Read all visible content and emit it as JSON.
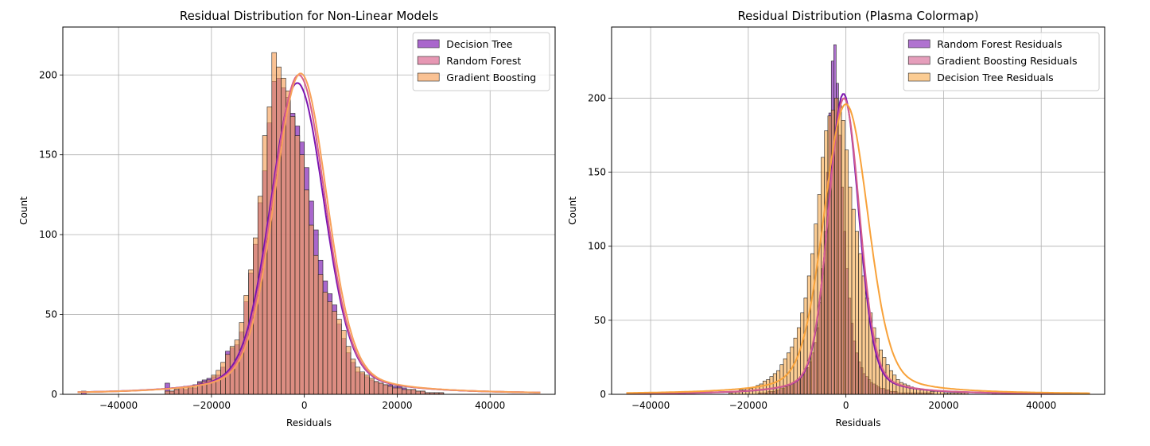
{
  "chart_data": [
    {
      "type": "histogram",
      "title": "Residual Distribution for Non-Linear Models",
      "xlabel": "Residuals",
      "ylabel": "Count",
      "xlim": [
        -52000,
        54000
      ],
      "ylim": [
        0,
        230
      ],
      "xticks": [
        -40000,
        -20000,
        0,
        20000,
        40000
      ],
      "xtick_labels": [
        "−40000",
        "−20000",
        "0",
        "20000",
        "40000"
      ],
      "yticks": [
        0,
        50,
        100,
        150,
        200
      ],
      "ytick_labels": [
        "0",
        "50",
        "100",
        "150",
        "200"
      ],
      "grid": true,
      "legend_position": "top-right",
      "bin_edges_start": -30000,
      "bin_width": 1000,
      "series": [
        {
          "name": "Decision Tree",
          "color": "#7b15b0",
          "bar_alpha": 0.65,
          "kde_peak": 195,
          "kde_center": -1500,
          "kde_sigma": 5600,
          "values": [
            7,
            2,
            3,
            4,
            3,
            4,
            4,
            8,
            9,
            10,
            11,
            12,
            17,
            27,
            29,
            31,
            39,
            58,
            76,
            94,
            120,
            140,
            170,
            196,
            198,
            192,
            186,
            176,
            168,
            158,
            142,
            121,
            103,
            84,
            71,
            63,
            56,
            44,
            35,
            26,
            20,
            14,
            13,
            11,
            9,
            8,
            7,
            6,
            6,
            5,
            5,
            4,
            3,
            3,
            2,
            2,
            1,
            1,
            1,
            1
          ],
          "outliers": [
            {
              "x": -48000,
              "count": 2
            }
          ]
        },
        {
          "name": "Random Forest",
          "color": "#d8608a",
          "bar_alpha": 0.65,
          "kde_peak": 200,
          "kde_center": -1200,
          "kde_sigma": 5500
        },
        {
          "name": "Gradient Boosting",
          "color": "#f8a15a",
          "bar_alpha": 0.65,
          "kde_peak": 201,
          "kde_center": -800,
          "kde_sigma": 5500,
          "values": [
            2,
            2,
            3,
            4,
            5,
            5,
            6,
            7,
            8,
            9,
            12,
            15,
            20,
            25,
            30,
            34,
            45,
            62,
            78,
            98,
            124,
            162,
            180,
            214,
            205,
            198,
            190,
            174,
            162,
            150,
            128,
            106,
            87,
            75,
            64,
            58,
            52,
            47,
            40,
            30,
            22,
            17,
            14,
            12,
            10,
            8,
            7,
            6,
            5,
            4,
            4,
            3,
            3,
            3,
            2,
            2,
            1,
            1,
            1,
            1
          ]
        }
      ]
    },
    {
      "type": "histogram",
      "title": "Residual Distribution (Plasma Colormap)",
      "xlabel": "Residuals",
      "ylabel": "Count",
      "xlim": [
        -48000,
        53000
      ],
      "ylim": [
        0,
        248
      ],
      "xticks": [
        -40000,
        -20000,
        0,
        20000,
        40000
      ],
      "xtick_labels": [
        "−40000",
        "−20000",
        "0",
        "20000",
        "40000"
      ],
      "yticks": [
        0,
        50,
        100,
        150,
        200
      ],
      "ytick_labels": [
        "0",
        "50",
        "100",
        "150",
        "200"
      ],
      "grid": true,
      "legend_position": "top-right",
      "series": [
        {
          "name": "Random Forest Residuals",
          "color": "#7b15b0",
          "bar_alpha": 0.6,
          "kde_peak": 203,
          "kde_center": -500,
          "kde_sigma": 3000,
          "bin_edges_start": -18000,
          "bin_width": 500,
          "values": [
            1,
            1,
            1,
            1,
            2,
            2,
            2,
            3,
            3,
            4,
            4,
            5,
            6,
            7,
            8,
            9,
            10,
            12,
            14,
            16,
            18,
            22,
            28,
            35,
            45,
            62,
            85,
            110,
            150,
            190,
            225,
            236,
            210,
            175,
            140,
            110,
            85,
            65,
            48,
            36,
            28,
            22,
            18,
            14,
            12,
            10,
            8,
            7,
            6,
            5,
            4,
            4,
            3,
            3,
            2,
            2,
            2,
            1,
            1,
            1,
            1,
            1,
            1,
            1,
            1,
            1,
            1,
            1,
            1,
            1,
            1,
            1
          ]
        },
        {
          "name": "Gradient Boosting Residuals",
          "color": "#d35e8e",
          "bar_alpha": 0.6,
          "kde_peak": 200,
          "kde_center": -400,
          "kde_sigma": 3100
        },
        {
          "name": "Decision Tree Residuals",
          "color": "#f8a23a",
          "bar_alpha": 0.55,
          "kde_peak": 196,
          "kde_center": 0,
          "kde_sigma": 4400,
          "bin_edges_start": -24000,
          "bin_width": 700,
          "values": [
            1,
            2,
            2,
            3,
            3,
            4,
            4,
            5,
            6,
            7,
            9,
            10,
            12,
            14,
            16,
            20,
            24,
            28,
            32,
            38,
            45,
            55,
            65,
            80,
            95,
            115,
            135,
            160,
            178,
            188,
            192,
            200,
            195,
            185,
            165,
            140,
            125,
            110,
            95,
            80,
            65,
            55,
            45,
            38,
            30,
            25,
            20,
            16,
            13,
            10,
            8,
            7,
            6,
            5,
            4,
            4,
            3,
            3,
            3,
            2,
            2,
            2,
            2,
            1,
            1,
            1,
            1,
            1,
            1,
            1
          ],
          "outliers": [
            {
              "x": -35000,
              "count": 1
            },
            {
              "x": 30000,
              "count": 1
            },
            {
              "x": 35000,
              "count": 1
            },
            {
              "x": 38000,
              "count": 1
            }
          ]
        }
      ]
    }
  ]
}
